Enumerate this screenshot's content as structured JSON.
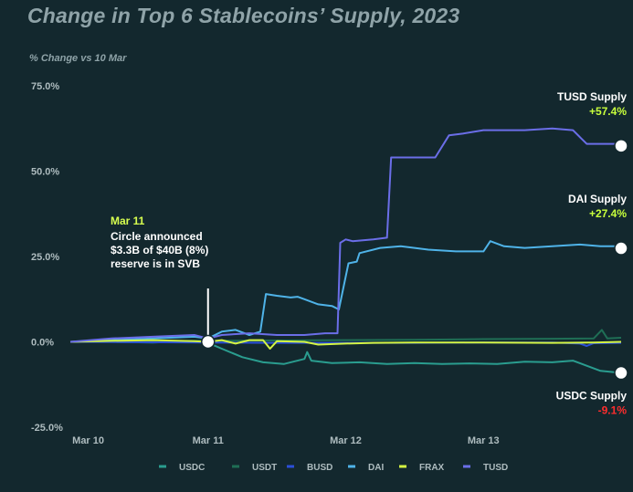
{
  "chart_data": {
    "type": "line",
    "title": "Change in Top 6 Stablecoins’ Supply, 2023",
    "ylabel": "% Change vs 10 Mar",
    "ylim": [
      -25,
      75
    ],
    "xlim": [
      0,
      4
    ],
    "yticks": [
      {
        "value": 75,
        "label": "75.0%"
      },
      {
        "value": 50,
        "label": "50.0%"
      },
      {
        "value": 25,
        "label": "25.0%"
      },
      {
        "value": 0,
        "label": "0.0%"
      },
      {
        "value": -25,
        "label": "-25.0%"
      }
    ],
    "xticks": [
      {
        "value": 0.13,
        "label": "Mar 10"
      },
      {
        "value": 1.0,
        "label": "Mar 11"
      },
      {
        "value": 2.0,
        "label": "Mar 12"
      },
      {
        "value": 3.0,
        "label": "Mar 13"
      }
    ],
    "grid": false,
    "legend_position": "bottom",
    "series": [
      {
        "name": "USDC",
        "color": "#2a9d8f",
        "end_marker": true,
        "points": [
          [
            0,
            0
          ],
          [
            0.3,
            0
          ],
          [
            0.6,
            -0.2
          ],
          [
            0.8,
            0.1
          ],
          [
            0.9,
            0
          ],
          [
            1.0,
            -0.3
          ],
          [
            1.1,
            -2
          ],
          [
            1.25,
            -4.5
          ],
          [
            1.4,
            -6
          ],
          [
            1.55,
            -6.5
          ],
          [
            1.7,
            -5
          ],
          [
            1.72,
            -3
          ],
          [
            1.75,
            -5.5
          ],
          [
            1.9,
            -6.2
          ],
          [
            2.1,
            -6
          ],
          [
            2.3,
            -6.5
          ],
          [
            2.5,
            -6.2
          ],
          [
            2.7,
            -6.5
          ],
          [
            2.9,
            -6.3
          ],
          [
            3.1,
            -6.5
          ],
          [
            3.3,
            -5.8
          ],
          [
            3.5,
            -6
          ],
          [
            3.65,
            -5.5
          ],
          [
            3.75,
            -7
          ],
          [
            3.85,
            -8.5
          ],
          [
            4,
            -9.1
          ]
        ]
      },
      {
        "name": "USDT",
        "color": "#1f6e55",
        "end_marker": false,
        "points": [
          [
            0,
            0
          ],
          [
            0.5,
            0.2
          ],
          [
            1.0,
            0.3
          ],
          [
            1.5,
            0.4
          ],
          [
            2,
            0.5
          ],
          [
            2.5,
            0.6
          ],
          [
            3,
            0.8
          ],
          [
            3.5,
            0.9
          ],
          [
            3.8,
            1
          ],
          [
            3.86,
            3.5
          ],
          [
            3.9,
            1
          ],
          [
            4,
            1.2
          ]
        ]
      },
      {
        "name": "BUSD",
        "color": "#2b4fd8",
        "end_marker": false,
        "points": [
          [
            0,
            0
          ],
          [
            0.5,
            -0.1
          ],
          [
            1,
            -0.2
          ],
          [
            1.5,
            -0.3
          ],
          [
            2,
            -0.3
          ],
          [
            2.5,
            -0.3
          ],
          [
            3,
            -0.2
          ],
          [
            3.5,
            -0.2
          ],
          [
            3.7,
            -0.5
          ],
          [
            3.75,
            -1.2
          ],
          [
            3.8,
            -0.4
          ],
          [
            4,
            -0.3
          ]
        ]
      },
      {
        "name": "DAI",
        "color": "#4fb3e8",
        "end_marker": true,
        "points": [
          [
            0,
            0
          ],
          [
            0.3,
            0.5
          ],
          [
            0.6,
            1
          ],
          [
            0.9,
            1.5
          ],
          [
            1.0,
            1
          ],
          [
            1.1,
            3
          ],
          [
            1.2,
            3.5
          ],
          [
            1.3,
            2
          ],
          [
            1.38,
            3
          ],
          [
            1.42,
            14
          ],
          [
            1.5,
            13.5
          ],
          [
            1.6,
            13
          ],
          [
            1.65,
            13.2
          ],
          [
            1.7,
            12.5
          ],
          [
            1.8,
            11
          ],
          [
            1.9,
            10.5
          ],
          [
            1.95,
            9.5
          ],
          [
            2.02,
            23
          ],
          [
            2.08,
            23.5
          ],
          [
            2.1,
            26
          ],
          [
            2.25,
            27.5
          ],
          [
            2.4,
            28
          ],
          [
            2.6,
            27
          ],
          [
            2.8,
            26.5
          ],
          [
            3.0,
            26.5
          ],
          [
            3.05,
            29.5
          ],
          [
            3.15,
            28
          ],
          [
            3.3,
            27.5
          ],
          [
            3.5,
            28
          ],
          [
            3.7,
            28.5
          ],
          [
            3.85,
            28
          ],
          [
            3.95,
            28
          ],
          [
            4,
            27.4
          ]
        ]
      },
      {
        "name": "FRAX",
        "color": "#d4f542",
        "end_marker": false,
        "points": [
          [
            0,
            0
          ],
          [
            0.3,
            0.3
          ],
          [
            0.6,
            0.5
          ],
          [
            0.9,
            0.2
          ],
          [
            1.0,
            0
          ],
          [
            1.1,
            0.5
          ],
          [
            1.2,
            -0.5
          ],
          [
            1.3,
            0.5
          ],
          [
            1.4,
            0.5
          ],
          [
            1.45,
            -2
          ],
          [
            1.5,
            0.2
          ],
          [
            1.7,
            0
          ],
          [
            1.8,
            -0.8
          ],
          [
            2.0,
            -0.5
          ],
          [
            2.2,
            -0.3
          ],
          [
            2.5,
            -0.2
          ],
          [
            3.0,
            -0.2
          ],
          [
            3.5,
            -0.3
          ],
          [
            3.8,
            -0.2
          ],
          [
            4,
            0
          ]
        ]
      },
      {
        "name": "TUSD",
        "color": "#6b6ee8",
        "end_marker": true,
        "points": [
          [
            0,
            0
          ],
          [
            0.3,
            1
          ],
          [
            0.6,
            1.5
          ],
          [
            0.9,
            2
          ],
          [
            1.0,
            1
          ],
          [
            1.1,
            2
          ],
          [
            1.3,
            2.5
          ],
          [
            1.5,
            2
          ],
          [
            1.7,
            2
          ],
          [
            1.85,
            2.5
          ],
          [
            1.94,
            2.5
          ],
          [
            1.96,
            29
          ],
          [
            2,
            30
          ],
          [
            2.05,
            29.5
          ],
          [
            2.2,
            30
          ],
          [
            2.3,
            30.5
          ],
          [
            2.33,
            54
          ],
          [
            2.45,
            54
          ],
          [
            2.65,
            54
          ],
          [
            2.75,
            60.5
          ],
          [
            2.85,
            61
          ],
          [
            3.0,
            62
          ],
          [
            3.1,
            62
          ],
          [
            3.3,
            62
          ],
          [
            3.5,
            62.5
          ],
          [
            3.65,
            62
          ],
          [
            3.75,
            58
          ],
          [
            3.85,
            58
          ],
          [
            3.95,
            58
          ],
          [
            4,
            57.4
          ]
        ]
      }
    ],
    "event": {
      "x": 1.0,
      "y": 0,
      "date": "Mar 11",
      "lines": [
        "Circle announced",
        "$3.3B of $40B (8%)",
        "reserve is in SVB"
      ]
    },
    "end_labels": [
      {
        "series": "TUSD",
        "name": "TUSD Supply",
        "change": "+57.4%",
        "sign": "pos"
      },
      {
        "series": "DAI",
        "name": "DAI Supply",
        "change": "+27.4%",
        "sign": "pos"
      },
      {
        "series": "USDC",
        "name": "USDC Supply",
        "change": "-9.1%",
        "sign": "neg"
      }
    ]
  }
}
